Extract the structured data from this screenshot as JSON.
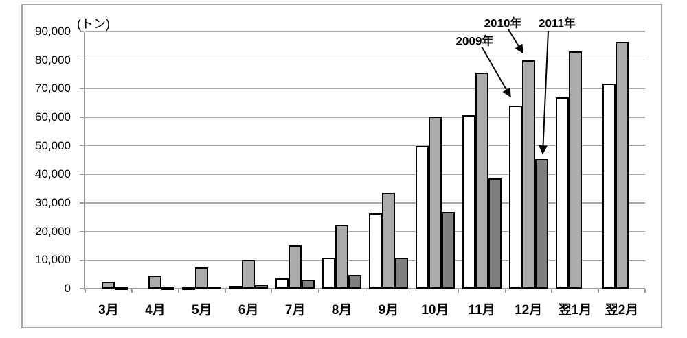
{
  "chart_data": {
    "type": "bar",
    "title": "",
    "unit_label": "(トン)",
    "categories": [
      "3月",
      "4月",
      "5月",
      "6月",
      "7月",
      "8月",
      "9月",
      "10月",
      "11月",
      "12月",
      "翌1月",
      "翌2月"
    ],
    "series": [
      {
        "name": "2009年",
        "color": "#ffffff",
        "values": [
          0,
          0,
          500,
          1000,
          3700,
          10700,
          26500,
          50000,
          60800,
          64000,
          67000,
          71700
        ]
      },
      {
        "name": "2010年",
        "color": "#ababab",
        "values": [
          2500,
          4500,
          7500,
          10000,
          15000,
          22200,
          33700,
          60300,
          75500,
          80000,
          83000,
          86400
        ]
      },
      {
        "name": "2011年",
        "color": "#7f7f7f",
        "values": [
          400,
          500,
          600,
          1400,
          3000,
          4800,
          10900,
          26900,
          38700,
          45300,
          null,
          null
        ]
      }
    ],
    "y_axis": {
      "min": 0,
      "max": 90000,
      "step": 10000,
      "tick_labels": [
        "90,000",
        "80,000",
        "70,000",
        "60,000",
        "50,000",
        "40,000",
        "30,000",
        "20,000",
        "10,000",
        "0"
      ]
    },
    "grid": true,
    "legend_position": "none",
    "annotations": [
      {
        "label": "2009年",
        "target_series": "2009年",
        "target_category": "12月"
      },
      {
        "label": "2010年",
        "target_series": "2010年",
        "target_category": "12月"
      },
      {
        "label": "2011年",
        "target_series": "2011年",
        "target_category": "12月"
      }
    ],
    "colors": {
      "bar_outline": "#000000",
      "gridline": "#a9a9a9",
      "axis": "#9b9b9b",
      "frame": "#a6a6a6",
      "text": "#000000"
    }
  }
}
